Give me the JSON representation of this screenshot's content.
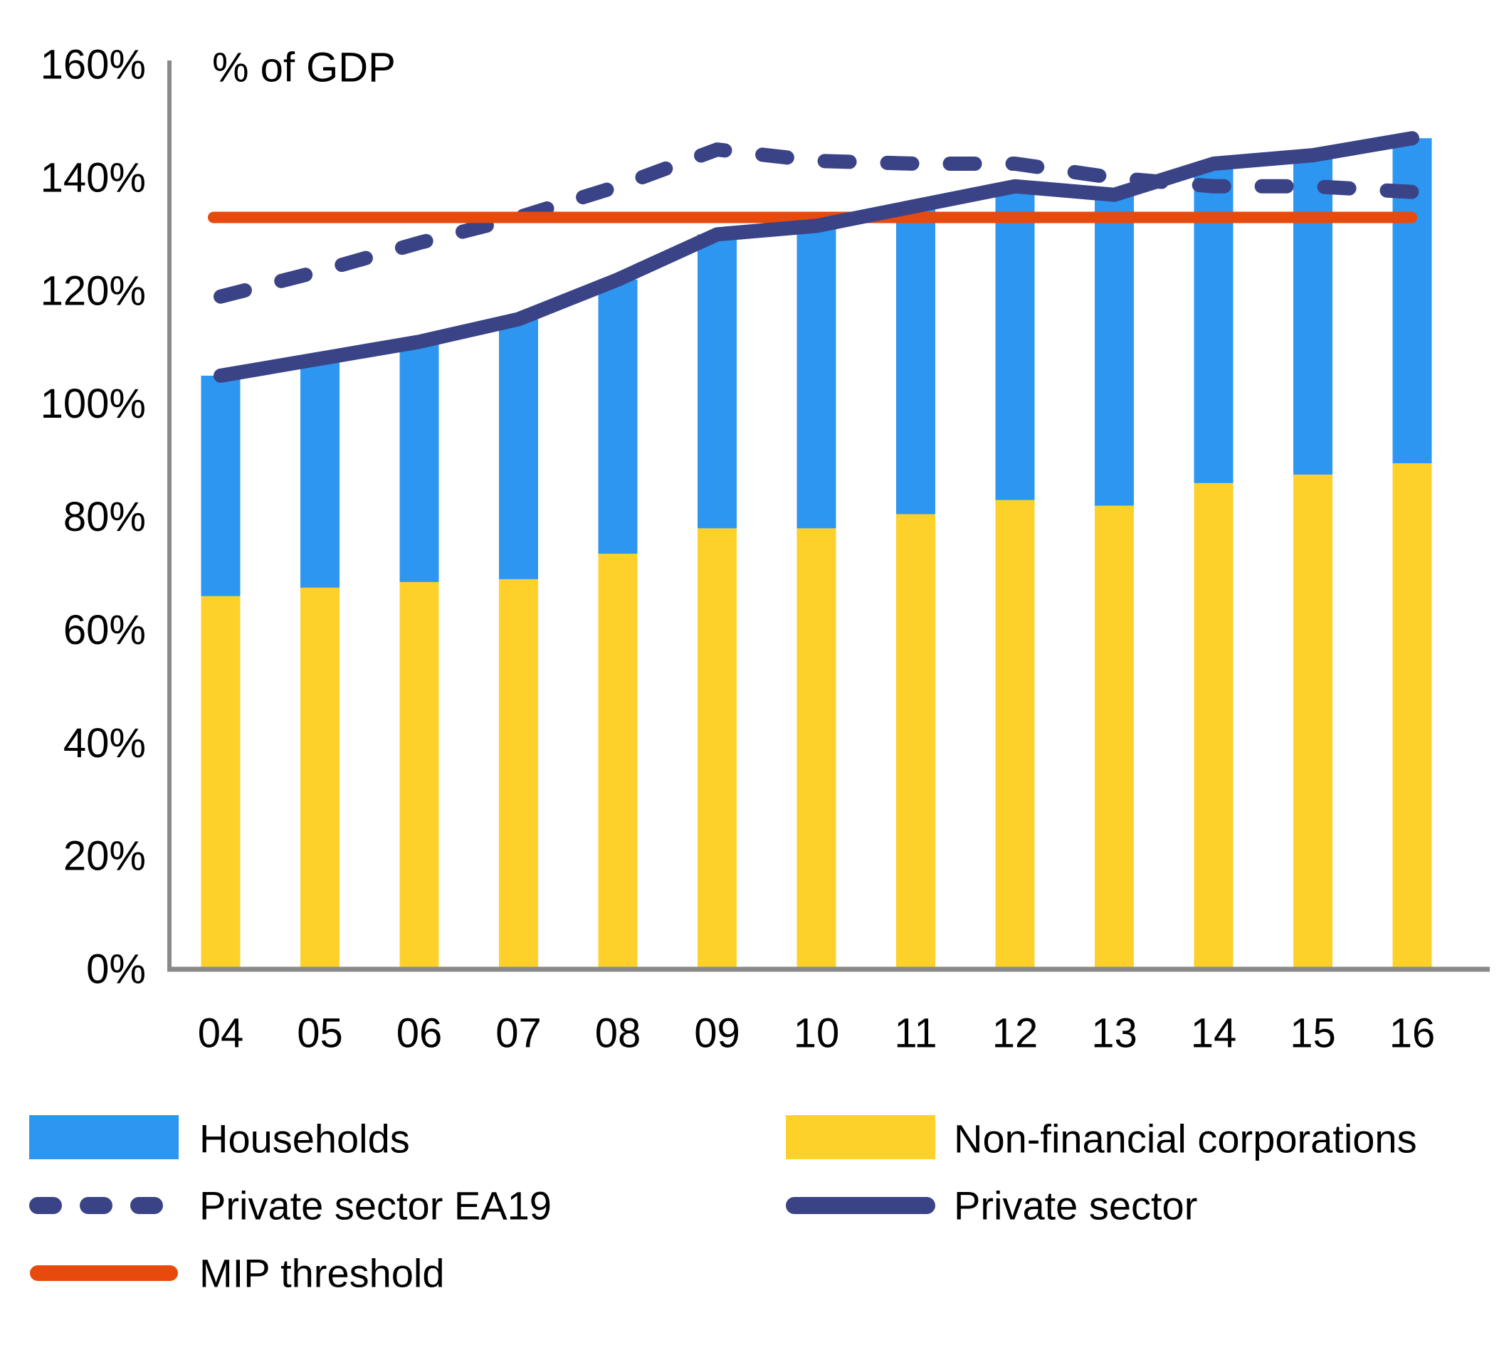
{
  "chart_data": {
    "type": "combo",
    "title": "% of GDP",
    "categories": [
      "04",
      "05",
      "06",
      "07",
      "08",
      "09",
      "10",
      "11",
      "12",
      "13",
      "14",
      "15",
      "16"
    ],
    "ylim": [
      0,
      160
    ],
    "ytick_step": 20,
    "ytick_suffix": "%",
    "grid": false,
    "legend_position": "bottom",
    "bar_series": [
      {
        "name": "Non-financial corporations",
        "color": "#FDD12A",
        "values": [
          66,
          67.5,
          68.5,
          69,
          73.5,
          78,
          78,
          80.5,
          83,
          82,
          86,
          87.5,
          89.5
        ]
      },
      {
        "name": "Households",
        "color": "#2D96F0",
        "values": [
          39,
          40.5,
          42.5,
          46,
          48.5,
          52,
          53.5,
          54.5,
          55.5,
          55,
          56.5,
          56.5,
          57.5
        ]
      }
    ],
    "line_series": [
      {
        "name": "Private sector EA19",
        "style": "dashed",
        "color": "#3A4386",
        "values": [
          119,
          123.5,
          128.5,
          133,
          138.5,
          145,
          143,
          142.5,
          142.5,
          140,
          138.5,
          138.5,
          137.5
        ]
      },
      {
        "name": "Private sector",
        "style": "solid",
        "color": "#3A4386",
        "values": [
          105,
          108,
          111,
          115,
          122,
          130,
          131.5,
          135,
          138.5,
          137,
          142.5,
          144,
          147
        ]
      }
    ],
    "threshold": {
      "name": "MIP threshold",
      "style": "solid",
      "color": "#E8490D",
      "value": 133
    }
  },
  "colors": {
    "axis": "#8A8A8A",
    "text": "#000000",
    "background": "#FFFFFF"
  }
}
